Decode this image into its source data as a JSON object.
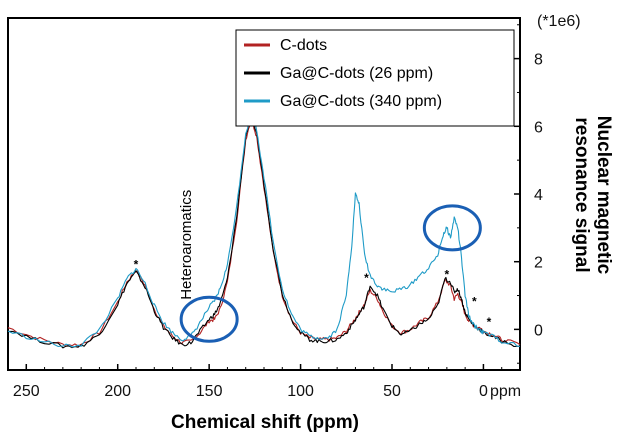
{
  "chart_data": {
    "type": "line",
    "xlabel": "Chemical shift (ppm)",
    "ylabel": "Nuclear magnetic resonance signal",
    "x_unit_label": "ppm",
    "y_scale_label": "(*1e6)",
    "xlim": [
      260,
      -20
    ],
    "ylim": [
      -1.2,
      9.2
    ],
    "x_reversed": true,
    "x_ticks": [
      250,
      200,
      150,
      100,
      50,
      0
    ],
    "y_ticks": [
      0,
      2,
      4,
      6,
      8
    ],
    "grid": false,
    "legend_position": "top-right",
    "annotations": [
      {
        "text": "Heteroaromatics",
        "x": 160,
        "y": 2.5,
        "orientation": "vertical"
      },
      {
        "text": "*",
        "x": 190,
        "y": 1.8
      },
      {
        "text": "*",
        "x": 64,
        "y": 1.4
      },
      {
        "text": "*",
        "x": 20,
        "y": 1.5
      },
      {
        "text": "*",
        "x": 5,
        "y": 0.7
      },
      {
        "text": "*",
        "x": -3,
        "y": 0.1
      }
    ],
    "highlights": [
      {
        "shape": "circle",
        "x": 150,
        "y": 0.3
      },
      {
        "shape": "circle",
        "x": 17,
        "y": 3.0
      }
    ],
    "series": [
      {
        "name": "C-dots",
        "color": "#b22222",
        "x": [
          260,
          245,
          230,
          220,
          210,
          200,
          195,
          190,
          185,
          180,
          175,
          170,
          165,
          160,
          155,
          150,
          147,
          144,
          140,
          135,
          130,
          127,
          124,
          120,
          115,
          110,
          105,
          100,
          95,
          90,
          85,
          80,
          75,
          71,
          68,
          65,
          62,
          58,
          55,
          50,
          45,
          40,
          35,
          30,
          25,
          21,
          18,
          16,
          14,
          12,
          10,
          8,
          5,
          2,
          0,
          -5,
          -10,
          -20
        ],
        "y": [
          0.05,
          -0.25,
          -0.45,
          -0.45,
          -0.1,
          0.8,
          1.4,
          1.75,
          1.3,
          0.6,
          0.1,
          -0.2,
          -0.4,
          -0.35,
          -0.1,
          0.25,
          0.3,
          0.6,
          1.4,
          3.2,
          5.6,
          6.25,
          5.7,
          4.2,
          2.3,
          1.0,
          0.3,
          -0.1,
          -0.25,
          -0.3,
          -0.3,
          -0.25,
          -0.05,
          0.25,
          0.5,
          0.75,
          1.15,
          0.9,
          0.55,
          0.1,
          -0.1,
          0.0,
          0.2,
          0.35,
          0.8,
          1.45,
          1.3,
          0.9,
          1.05,
          0.8,
          0.45,
          0.25,
          0.1,
          0.05,
          -0.05,
          -0.15,
          -0.3,
          -0.45
        ]
      },
      {
        "name": "Ga@C-dots (26 ppm)",
        "color": "#000000",
        "x": [
          260,
          245,
          230,
          220,
          210,
          200,
          195,
          190,
          185,
          180,
          175,
          170,
          165,
          160,
          155,
          150,
          147,
          144,
          140,
          135,
          130,
          127,
          124,
          120,
          115,
          110,
          105,
          100,
          95,
          90,
          85,
          80,
          75,
          71,
          68,
          65,
          62,
          58,
          55,
          50,
          45,
          40,
          35,
          30,
          25,
          21,
          18,
          16,
          14,
          12,
          10,
          8,
          5,
          2,
          0,
          -5,
          -10,
          -20
        ],
        "y": [
          0.0,
          -0.3,
          -0.5,
          -0.5,
          -0.15,
          0.75,
          1.35,
          1.7,
          1.25,
          0.55,
          0.05,
          -0.25,
          -0.45,
          -0.4,
          -0.05,
          0.3,
          0.45,
          0.75,
          1.5,
          3.3,
          5.7,
          6.3,
          5.8,
          4.3,
          2.4,
          1.05,
          0.3,
          -0.1,
          -0.3,
          -0.35,
          -0.35,
          -0.3,
          -0.1,
          0.2,
          0.45,
          0.7,
          1.3,
          1.0,
          0.6,
          0.1,
          -0.15,
          -0.05,
          0.15,
          0.3,
          0.7,
          1.5,
          1.4,
          1.1,
          1.2,
          0.9,
          0.5,
          0.3,
          0.1,
          0.0,
          -0.1,
          -0.2,
          -0.35,
          -0.5
        ]
      },
      {
        "name": "Ga@C-dots (340 ppm)",
        "color": "#1f9bc7",
        "x": [
          260,
          245,
          230,
          220,
          210,
          200,
          195,
          190,
          185,
          180,
          175,
          170,
          165,
          160,
          155,
          150,
          147,
          144,
          140,
          135,
          130,
          127,
          124,
          120,
          115,
          110,
          105,
          100,
          95,
          90,
          85,
          80,
          75,
          72,
          70,
          68,
          65,
          62,
          58,
          55,
          50,
          45,
          40,
          35,
          30,
          25,
          22,
          20,
          18,
          16,
          14,
          12,
          10,
          8,
          5,
          2,
          0,
          -5,
          -10,
          -20
        ],
        "y": [
          -0.05,
          -0.3,
          -0.5,
          -0.45,
          0.0,
          0.9,
          1.5,
          1.8,
          1.35,
          0.7,
          0.2,
          -0.1,
          -0.3,
          -0.2,
          0.2,
          0.65,
          0.85,
          1.2,
          1.9,
          3.6,
          5.8,
          6.35,
          5.9,
          4.5,
          2.6,
          1.2,
          0.45,
          0.0,
          -0.2,
          -0.25,
          -0.25,
          0.0,
          1.0,
          2.5,
          4.0,
          3.7,
          2.2,
          1.6,
          1.3,
          1.2,
          1.1,
          1.2,
          1.3,
          1.6,
          1.8,
          2.2,
          2.8,
          3.0,
          2.7,
          3.3,
          3.0,
          2.1,
          1.0,
          0.4,
          0.1,
          0.0,
          -0.1,
          -0.2,
          -0.35,
          -0.5
        ]
      }
    ]
  }
}
